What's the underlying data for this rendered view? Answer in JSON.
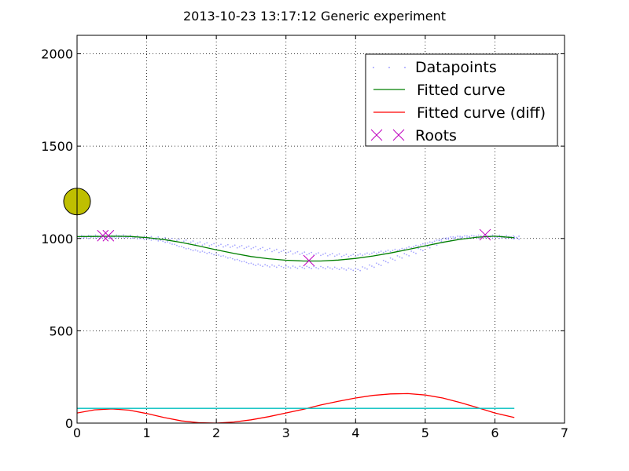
{
  "chart_data": {
    "type": "line",
    "title": "2013-10-23 13:17:12 Generic experiment",
    "xlim": [
      0,
      7
    ],
    "ylim": [
      0,
      2100
    ],
    "xticks": [
      0,
      1,
      2,
      3,
      4,
      5,
      6,
      7
    ],
    "yticks": [
      0,
      500,
      1000,
      1500,
      2000
    ],
    "grid": true,
    "legend_position": "top-right",
    "legend": [
      "Datapoints",
      "Fitted curve",
      "Fitted curve (diff)",
      "Roots"
    ],
    "series": [
      {
        "name": "Datapoints",
        "style": "dots",
        "color": "#8888ff",
        "x": [
          0.0,
          0.1,
          0.2,
          0.3,
          0.4,
          0.5,
          0.6,
          0.7,
          0.8,
          0.9,
          1.0,
          1.1,
          1.2,
          1.3,
          1.4,
          1.5,
          1.6,
          1.7,
          1.8,
          1.9,
          2.0,
          2.1,
          2.2,
          2.3,
          2.4,
          2.5,
          2.6,
          2.7,
          2.8,
          2.9,
          3.0,
          3.1,
          3.2,
          3.3,
          3.4,
          3.5,
          3.6,
          3.7,
          3.8,
          3.9,
          4.0,
          4.1,
          4.2,
          4.3,
          4.4,
          4.5,
          4.6,
          4.7,
          4.8,
          4.9,
          5.0,
          5.1,
          5.2,
          5.3,
          5.4,
          5.5,
          5.6,
          5.7,
          5.8,
          5.9,
          6.0,
          6.1,
          6.2,
          6.28
        ],
        "y_upper": [
          1010,
          1010,
          1012,
          1011,
          1010,
          1012,
          1013,
          1011,
          1008,
          1006,
          1004,
          1002,
          998,
          994,
          990,
          985,
          980,
          975,
          970,
          966,
          962,
          960,
          958,
          955,
          952,
          950,
          945,
          940,
          935,
          930,
          925,
          922,
          920,
          918,
          916,
          914,
          912,
          910,
          908,
          908,
          910,
          915,
          920,
          925,
          930,
          935,
          940,
          948,
          956,
          965,
          975,
          985,
          995,
          1002,
          1006,
          1008,
          1010,
          1012,
          1013,
          1012,
          1011,
          1010,
          1008,
          1006
        ],
        "y_lower": [
          1008,
          1006,
          1008,
          1007,
          1006,
          1008,
          1009,
          1007,
          1004,
          1000,
          997,
          993,
          985,
          975,
          962,
          950,
          940,
          932,
          925,
          918,
          910,
          900,
          890,
          880,
          870,
          860,
          855,
          852,
          850,
          848,
          846,
          844,
          843,
          843,
          842,
          842,
          840,
          838,
          835,
          833,
          832,
          840,
          850,
          860,
          875,
          888,
          900,
          912,
          925,
          940,
          955,
          970,
          985,
          996,
          1002,
          1005,
          1007,
          1008,
          1009,
          1008,
          1007,
          1006,
          1004,
          1002
        ]
      },
      {
        "name": "Fitted curve",
        "style": "line",
        "color": "#007f00",
        "x": [
          0.0,
          0.25,
          0.5,
          0.75,
          1.0,
          1.25,
          1.5,
          1.75,
          2.0,
          2.25,
          2.5,
          2.75,
          3.0,
          3.25,
          3.5,
          3.75,
          4.0,
          4.25,
          4.5,
          4.75,
          5.0,
          5.25,
          5.5,
          5.75,
          6.0,
          6.28
        ],
        "y": [
          1010,
          1011,
          1012,
          1011,
          1005,
          994,
          978,
          959,
          938,
          919,
          902,
          890,
          882,
          878,
          878,
          883,
          892,
          905,
          921,
          940,
          960,
          979,
          995,
          1007,
          1012,
          1004
        ]
      },
      {
        "name": "Fitted curve (diff)",
        "style": "line",
        "color": "#ff0000",
        "x": [
          0.0,
          0.25,
          0.5,
          0.75,
          1.0,
          1.25,
          1.5,
          1.75,
          2.0,
          2.25,
          2.5,
          2.75,
          3.0,
          3.25,
          3.5,
          3.75,
          4.0,
          4.25,
          4.5,
          4.75,
          5.0,
          5.25,
          5.5,
          5.75,
          6.0,
          6.28
        ],
        "y": [
          55,
          72,
          77,
          70,
          52,
          30,
          12,
          2,
          0,
          6,
          18,
          35,
          55,
          75,
          98,
          118,
          136,
          150,
          158,
          160,
          152,
          136,
          112,
          84,
          55,
          30
        ]
      },
      {
        "name": "",
        "style": "line",
        "color": "#00bfbf",
        "x": [
          0.0,
          6.28
        ],
        "y": [
          80,
          80
        ]
      },
      {
        "name": "Roots",
        "style": "x-markers",
        "color": "#bf00bf",
        "x": [
          0.37,
          0.45,
          3.33,
          5.86
        ],
        "y": [
          1015,
          1015,
          880,
          1020
        ]
      }
    ],
    "extra_marker": {
      "shape": "circle",
      "color": "#bfbf00",
      "x": 0.0,
      "y": 1200
    }
  }
}
